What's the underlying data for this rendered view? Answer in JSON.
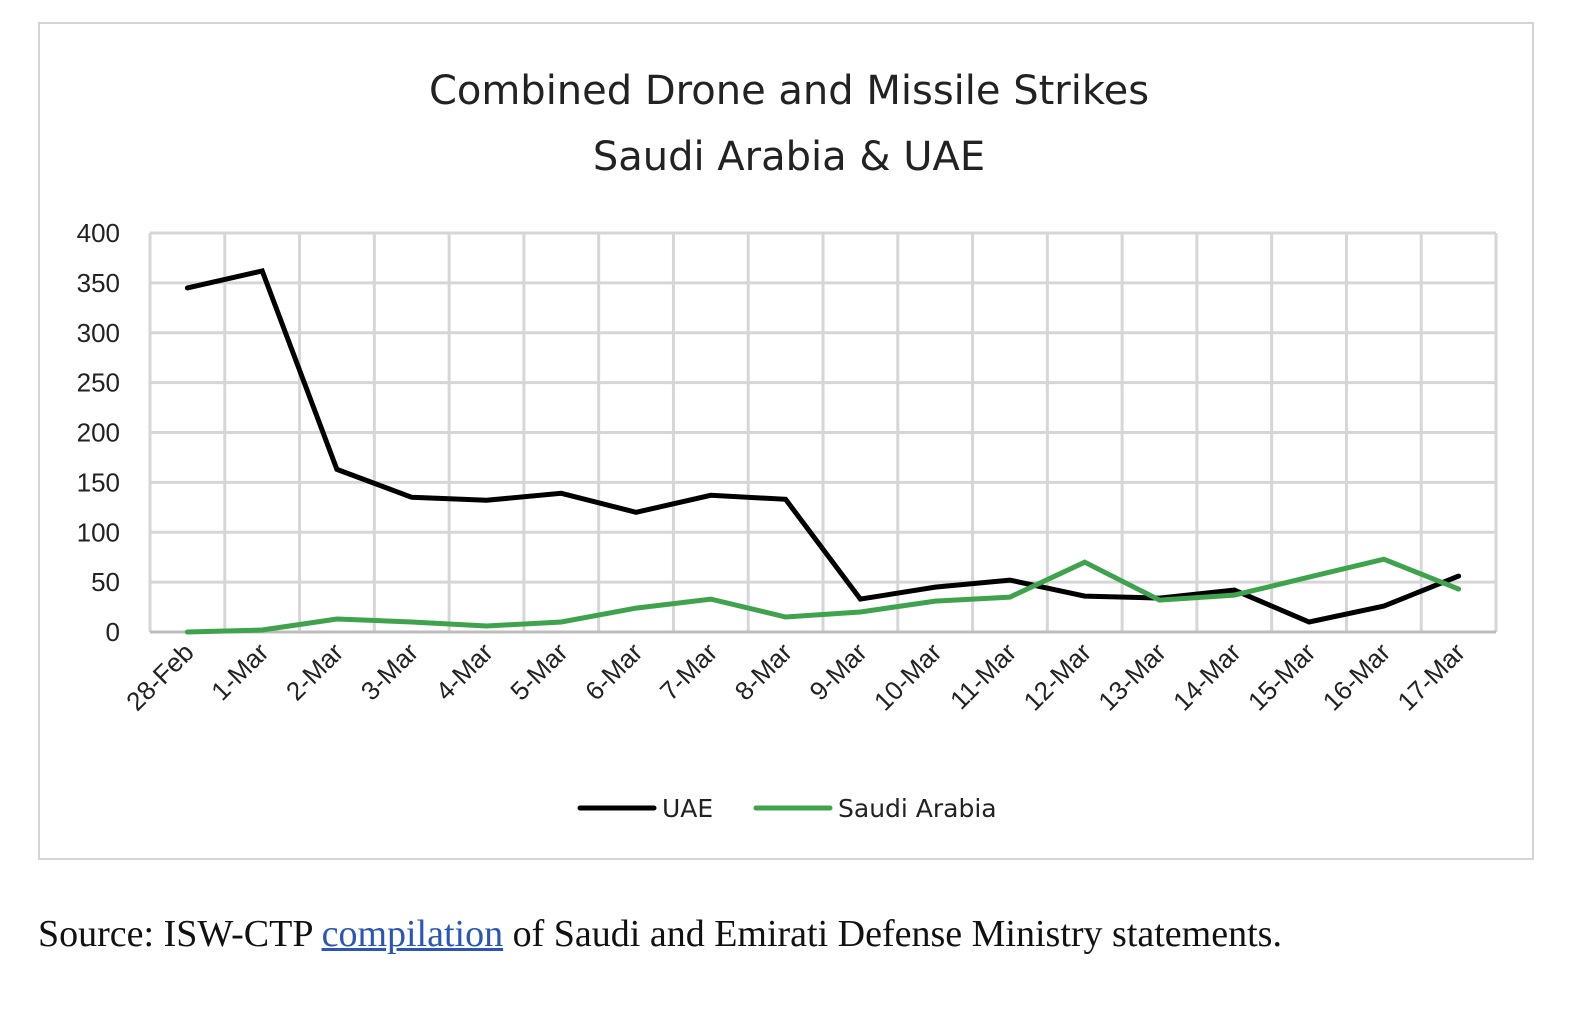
{
  "chart_data": {
    "type": "line",
    "title": "Combined Drone and Missile Strikes",
    "subtitle": "Saudi Arabia & UAE",
    "xlabel": "",
    "ylabel": "",
    "ylim": [
      0,
      400
    ],
    "yticks": [
      0,
      50,
      100,
      150,
      200,
      250,
      300,
      350,
      400
    ],
    "ytick_labels": [
      "0",
      "50",
      "100",
      "150",
      "200",
      "250",
      "300",
      "350",
      "400"
    ],
    "grid": true,
    "legend_position": "bottom-center",
    "categories": [
      "28-Feb",
      "1-Mar",
      "2-Mar",
      "3-Mar",
      "4-Mar",
      "5-Mar",
      "6-Mar",
      "7-Mar",
      "8-Mar",
      "9-Mar",
      "10-Mar",
      "11-Mar",
      "12-Mar",
      "13-Mar",
      "14-Mar",
      "15-Mar",
      "16-Mar",
      "17-Mar"
    ],
    "series": [
      {
        "name": "UAE",
        "color": "#000000",
        "values": [
          345,
          362,
          163,
          135,
          132,
          139,
          120,
          137,
          133,
          33,
          45,
          52,
          36,
          34,
          42,
          10,
          26,
          56
        ]
      },
      {
        "name": "Saudi Arabia",
        "color": "#3fa34d",
        "values": [
          0,
          2,
          13,
          10,
          6,
          10,
          24,
          33,
          15,
          20,
          31,
          35,
          70,
          32,
          37,
          55,
          73,
          43
        ]
      }
    ]
  },
  "caption": {
    "prefix": "Source: ISW-CTP ",
    "link_text": "compilation",
    "suffix": " of Saudi and Emirati Defense Ministry statements.",
    "link_color": "#2a56b8"
  },
  "colors": {
    "grid": "#d6d6d6",
    "frame": "#d4d4d4"
  }
}
